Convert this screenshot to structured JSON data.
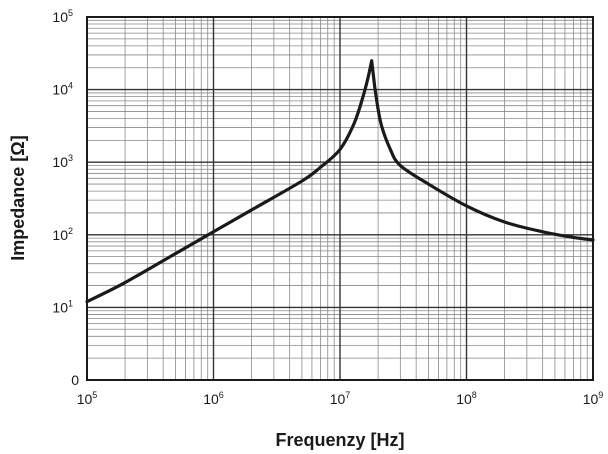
{
  "chart_data": {
    "type": "line",
    "title": "",
    "xlabel": "Frequenzy [Hz]",
    "ylabel": "Impedance [Ω]",
    "x_scale": "log",
    "y_scale": "log",
    "xlim": [
      100000,
      1000000000
    ],
    "ylim": [
      1,
      100000
    ],
    "grid": true,
    "x_ticks": [
      {
        "base": "10",
        "exp": "5",
        "value": 100000
      },
      {
        "base": "10",
        "exp": "6",
        "value": 1000000
      },
      {
        "base": "10",
        "exp": "7",
        "value": 10000000
      },
      {
        "base": "10",
        "exp": "8",
        "value": 100000000
      },
      {
        "base": "10",
        "exp": "9",
        "value": 1000000000
      }
    ],
    "y_ticks": [
      {
        "base": "0",
        "exp": "",
        "value": 1
      },
      {
        "base": "10",
        "exp": "1",
        "value": 10
      },
      {
        "base": "10",
        "exp": "2",
        "value": 100
      },
      {
        "base": "10",
        "exp": "3",
        "value": 1000
      },
      {
        "base": "10",
        "exp": "4",
        "value": 10000
      },
      {
        "base": "10",
        "exp": "5",
        "value": 100000
      }
    ],
    "series": [
      {
        "line_color": "#1a1a1a",
        "points": [
          [
            100000,
            12
          ],
          [
            200000,
            22
          ],
          [
            500000,
            55
          ],
          [
            1000000,
            110
          ],
          [
            2000000,
            220
          ],
          [
            5000000,
            550
          ],
          [
            7000000,
            850
          ],
          [
            10000000,
            1500
          ],
          [
            13000000,
            3500
          ],
          [
            15500000,
            9000
          ],
          [
            17000000,
            17000
          ],
          [
            17800000,
            25000
          ],
          [
            18800000,
            11000
          ],
          [
            21000000,
            3500
          ],
          [
            25000000,
            1500
          ],
          [
            30000000,
            900
          ],
          [
            50000000,
            500
          ],
          [
            100000000,
            250
          ],
          [
            200000000,
            150
          ],
          [
            400000000,
            110
          ],
          [
            700000000,
            92
          ],
          [
            1000000000,
            85
          ]
        ]
      }
    ]
  }
}
